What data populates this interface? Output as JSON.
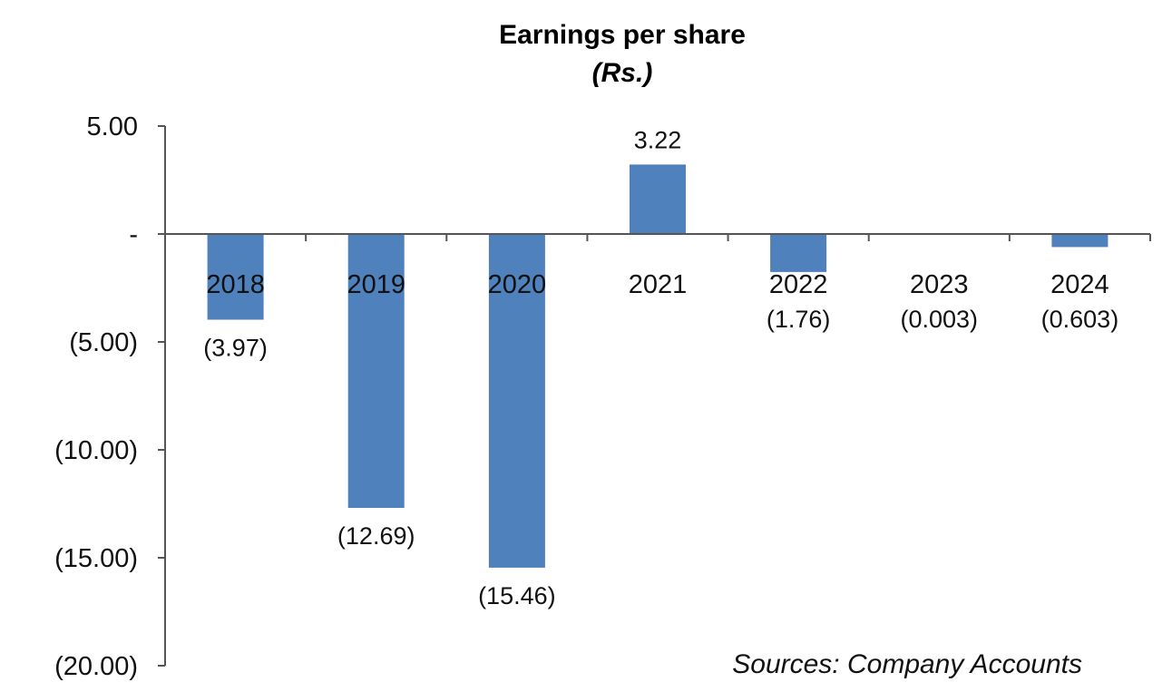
{
  "chart_data": {
    "type": "bar",
    "title": "Earnings per share",
    "subtitle": "(Rs.)",
    "xlabel": "",
    "ylabel": "",
    "categories": [
      "2018",
      "2019",
      "2020",
      "2021",
      "2022",
      "2023",
      "2024"
    ],
    "values": [
      -3.97,
      -12.69,
      -15.46,
      3.22,
      -1.76,
      -0.003,
      -0.603
    ],
    "data_labels": [
      "(3.97)",
      "(12.69)",
      "(15.46)",
      "3.22",
      "(1.76)",
      "(0.003)",
      "(0.603)"
    ],
    "ylim": [
      -20,
      5
    ],
    "yticks": [
      5,
      0,
      -5,
      -10,
      -15,
      -20
    ],
    "ytick_labels": [
      "5.00",
      "-",
      "(5.00)",
      "(10.00)",
      "(15.00)",
      "(20.00)"
    ],
    "bar_color": "#4F81BD",
    "grid": false,
    "legend": "none",
    "source_note": "Sources: Company Accounts"
  }
}
